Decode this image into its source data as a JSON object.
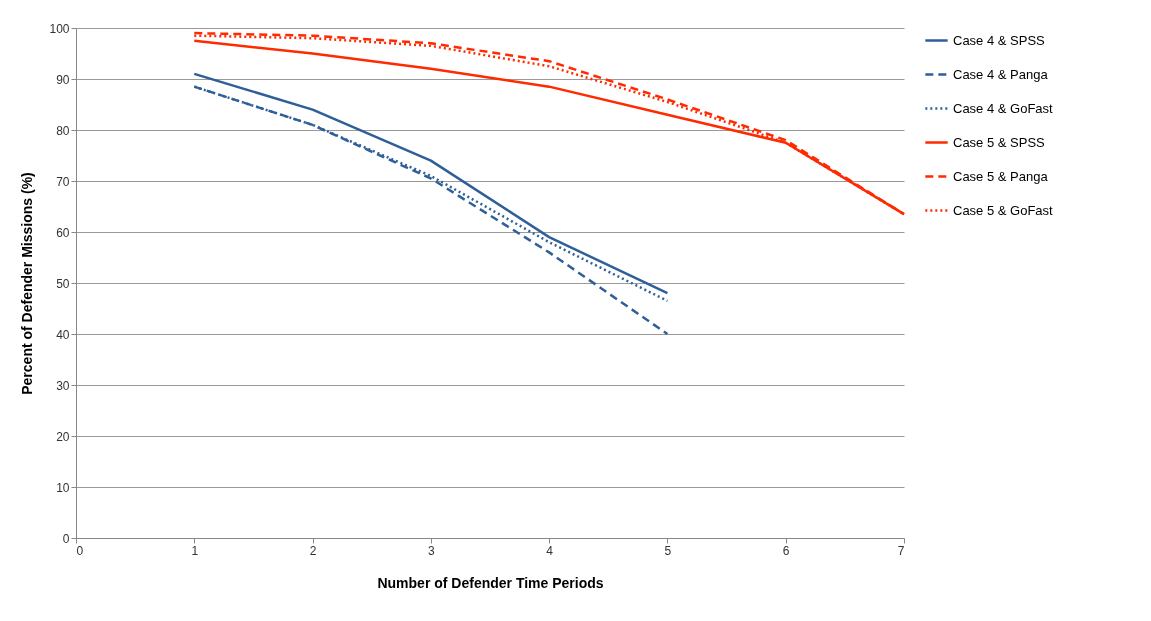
{
  "chart_data": {
    "type": "line",
    "xlabel": "Number of Defender Time Periods",
    "ylabel": "Percent of Defender Missions (%)",
    "x": [
      1,
      2,
      3,
      4,
      5,
      6,
      7
    ],
    "series": [
      {
        "name": "Case 4 & SPSS",
        "color": "#2f5f98",
        "line_style": "solid",
        "values": [
          91,
          84,
          74,
          59,
          48,
          null,
          null
        ]
      },
      {
        "name": "Case 4 & Panga",
        "color": "#2f5f98",
        "line_style": "dashed",
        "values": [
          88.5,
          81,
          70.5,
          56,
          40,
          null,
          null
        ]
      },
      {
        "name": "Case 4 & GoFast",
        "color": "#2f5f98",
        "line_style": "dotted",
        "values": [
          88.5,
          81,
          71,
          58,
          46.5,
          null,
          null
        ]
      },
      {
        "name": "Case 5 & SPSS",
        "color": "#ff2a00",
        "line_style": "solid",
        "values": [
          97.5,
          95,
          92,
          88.5,
          83,
          77.5,
          63.5
        ]
      },
      {
        "name": "Case 5 & Panga",
        "color": "#ff2a00",
        "line_style": "dashed",
        "values": [
          99,
          98.5,
          97,
          93.5,
          86,
          78,
          63.5
        ]
      },
      {
        "name": "Case 5 & GoFast",
        "color": "#ff2a00",
        "line_style": "dotted",
        "values": [
          98.5,
          98,
          96.5,
          92.5,
          85.5,
          77.5,
          63.5
        ]
      }
    ],
    "xlim": [
      0,
      7
    ],
    "xticks": [
      0,
      1,
      2,
      3,
      4,
      5,
      6,
      7
    ],
    "ylim": [
      0,
      100
    ],
    "yticks": [
      0,
      10,
      20,
      30,
      40,
      50,
      60,
      70,
      80,
      90,
      100
    ],
    "grid": "y",
    "legend": "right",
    "marker": "none"
  }
}
